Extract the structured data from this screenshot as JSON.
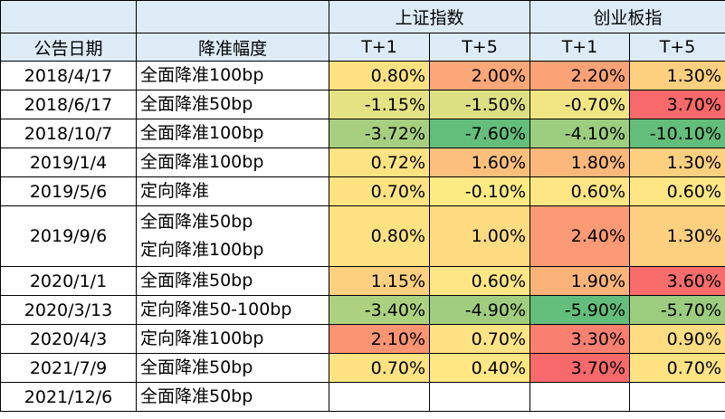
{
  "header": {
    "group_sh": "上证指数",
    "group_cy": "创业板指",
    "col_date": "公告日期",
    "col_cut": "降准幅度",
    "t1": "T+1",
    "t5": "T+5"
  },
  "colors": {
    "header_bg": "#ddebf7",
    "high_red": "#f8696b",
    "orange": "#fbaa77",
    "yellow": "#ffe984",
    "green": "#63be7b"
  },
  "rows": [
    {
      "date": "2018/4/17",
      "cut": [
        "全面降准100bp"
      ],
      "sh_t1": "0.80%",
      "sh_t5": "2.00%",
      "cy_t1": "2.20%",
      "cy_t5": "1.30%",
      "bg": [
        "#fee282",
        "#fba777",
        "#fba376",
        "#fdd07f"
      ]
    },
    {
      "date": "2018/6/17",
      "cut": [
        "全面降准50bp"
      ],
      "sh_t1": "-1.15%",
      "sh_t5": "-1.50%",
      "cy_t1": "-0.70%",
      "cy_t5": "3.70%",
      "bg": [
        "#e4e282",
        "#dde082",
        "#f1e683",
        "#f8696b"
      ]
    },
    {
      "date": "2018/10/7",
      "cut": [
        "全面降准100bp"
      ],
      "sh_t1": "-3.72%",
      "sh_t5": "-7.60%",
      "cy_t1": "-4.10%",
      "cy_t5": "-10.10%",
      "bg": [
        "#a6d07f",
        "#63be7b",
        "#9dcd7e",
        "#63be7b"
      ]
    },
    {
      "date": "2019/1/4",
      "cut": [
        "全面降准100bp"
      ],
      "sh_t1": "0.72%",
      "sh_t5": "1.60%",
      "cy_t1": "1.80%",
      "cy_t5": "1.30%",
      "bg": [
        "#fee383",
        "#fcc07c",
        "#fcb87a",
        "#fdd07f"
      ]
    },
    {
      "date": "2019/5/6",
      "cut": [
        "定向降准"
      ],
      "sh_t1": "0.70%",
      "sh_t5": "-0.10%",
      "cy_t1": "0.60%",
      "cy_t5": "0.60%",
      "bg": [
        "#ffe383",
        "#fdeb84",
        "#ffe684",
        "#ffe684"
      ]
    },
    {
      "date": "2019/9/6",
      "cut": [
        "全面降准50bp",
        "定向降准100bp"
      ],
      "sh_t1": "0.80%",
      "sh_t5": "1.00%",
      "cy_t1": "2.40%",
      "cy_t5": "1.30%",
      "bg": [
        "#fee282",
        "#fedb81",
        "#fb9a74",
        "#fdd07f"
      ],
      "tall": true
    },
    {
      "date": "2020/1/1",
      "cut": [
        "全面降准50bp"
      ],
      "sh_t1": "1.15%",
      "sh_t5": "0.60%",
      "cy_t1": "1.90%",
      "cy_t5": "3.60%",
      "bg": [
        "#fdd07f",
        "#ffe684",
        "#fbb37a",
        "#f86d6c"
      ]
    },
    {
      "date": "2020/3/13",
      "cut": [
        "定向降准50-100bp"
      ],
      "sh_t1": "-3.40%",
      "sh_t5": "-4.90%",
      "cy_t1": "-5.90%",
      "cy_t5": "-5.70%",
      "bg": [
        "#acd27f",
        "#a0ce7e",
        "#63be7b",
        "#9ccc7e"
      ]
    },
    {
      "date": "2020/4/3",
      "cut": [
        "定向降准100bp"
      ],
      "sh_t1": "2.10%",
      "sh_t5": "0.70%",
      "cy_t1": "3.30%",
      "cy_t5": "0.90%",
      "bg": [
        "#fa9473",
        "#ffe384",
        "#f97f70",
        "#fedd82"
      ]
    },
    {
      "date": "2021/7/9",
      "cut": [
        "全面降准50bp"
      ],
      "sh_t1": "0.70%",
      "sh_t5": "0.40%",
      "cy_t1": "3.70%",
      "cy_t5": "0.70%",
      "bg": [
        "#ffe383",
        "#ffe784",
        "#f8696b",
        "#ffe383"
      ]
    },
    {
      "date": "2021/12/6",
      "cut": [
        "全面降准50bp"
      ],
      "sh_t1": "",
      "sh_t5": "",
      "cy_t1": "",
      "cy_t5": "",
      "bg": [
        "#ffffff",
        "#ffffff",
        "#ffffff",
        "#ffffff"
      ]
    }
  ]
}
